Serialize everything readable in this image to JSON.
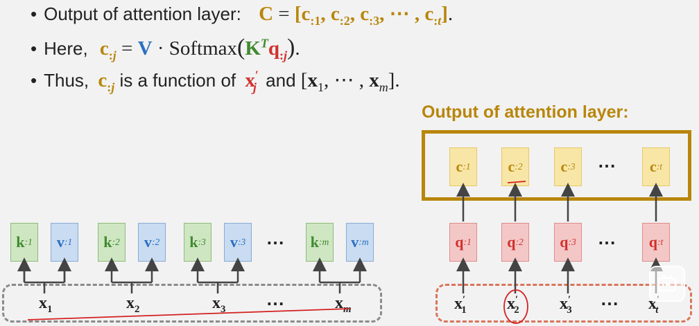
{
  "bullets": {
    "b1_text": "Output of attention layer:",
    "b2_text": "Here,",
    "b3_text_a": "Thus,",
    "b3_text_b": "is a function of",
    "b3_text_c": "and",
    "bullet_char": "•"
  },
  "output_panel": {
    "title": "Output of attention layer:",
    "cells": [
      "c",
      "c",
      "c",
      "c"
    ],
    "cell_subs": [
      ":1",
      ":2",
      ":3",
      ":t"
    ],
    "ellipsis": "⋯"
  },
  "kv": {
    "k_subs": [
      ":1",
      ":2",
      ":3",
      ":m"
    ],
    "v_subs": [
      ":1",
      ":2",
      ":3",
      ":m"
    ],
    "k_letter": "k",
    "v_letter": "v",
    "ellipsis": "⋯"
  },
  "x_inputs": {
    "letter": "x",
    "subs": [
      "1",
      "2",
      "3",
      "m"
    ],
    "ellipsis": "⋯"
  },
  "q": {
    "letter": "q",
    "subs": [
      ":1",
      ":2",
      ":3",
      ":t"
    ],
    "ellipsis": "⋯"
  },
  "xprime_inputs": {
    "letter": "x",
    "subs": [
      "1",
      "2",
      "3",
      "t"
    ],
    "ellipsis": "⋯"
  },
  "colors": {
    "c": "#b8860b",
    "k": "#3f8a2e",
    "v": "#2b6fc0",
    "q": "#d0312d",
    "annotation_red": "#d42020",
    "background": "#f2f2f2"
  },
  "icons": {
    "video_player": "play-icon"
  }
}
